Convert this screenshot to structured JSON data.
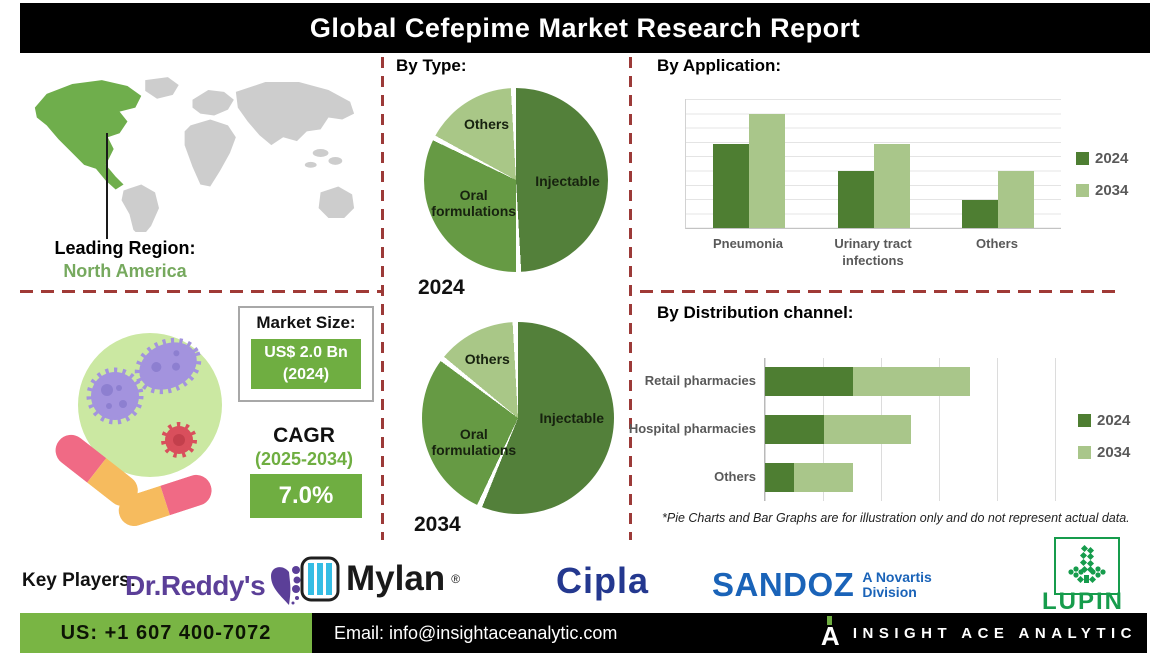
{
  "title": "Global Cefepime Market Research Report",
  "leading_region": {
    "label": "Leading Region:",
    "value": "North America"
  },
  "market": {
    "size_label": "Market Size:",
    "size_value": "US$ 2.0 Bn",
    "size_year": "(2024)",
    "cagr_label": "CAGR",
    "cagr_period": "(2025-2034)",
    "cagr_value": "7.0%"
  },
  "sections": {
    "by_type": "By Type:",
    "by_application": "By Application:",
    "by_distribution": "By Distribution channel:"
  },
  "disclaimer": "*Pie Charts and Bar Graphs are for illustration only and do not represent actual data.",
  "key_players": {
    "label": "Key Players:",
    "drreddys": "Dr.Reddy's",
    "mylan": "Mylan",
    "mylan_reg": "®",
    "cipla": "Cipla",
    "sandoz": "SANDOZ",
    "sandoz_sub1": "A Novartis",
    "sandoz_sub2": "Division",
    "lupin": "LUPIN"
  },
  "footer": {
    "phone": "US: +1 607 400-7072",
    "email": "Email: info@insightaceanalytic.com",
    "brand": "INSIGHT ACE ANALYTIC"
  },
  "colors": {
    "accent_green": "#6fae41",
    "footer_green": "#79b544",
    "dark_series": "#4e7e32",
    "light_series": "#a9c68a",
    "dashed_red": "#9c3a38",
    "map_green": "#6fae4c",
    "map_gray": "#cdcdcd"
  },
  "chart_data": [
    {
      "type": "pie",
      "title": "2024",
      "labels": [
        "Injectable",
        "Oral formulations",
        "Others"
      ],
      "values": [
        50,
        33,
        17
      ],
      "colors": [
        "#53803a",
        "#669a44",
        "#a9c787"
      ]
    },
    {
      "type": "pie",
      "title": "2034",
      "labels": [
        "Injectable",
        "Oral formulations",
        "Others"
      ],
      "values": [
        57,
        29,
        14
      ],
      "colors": [
        "#53803a",
        "#669a44",
        "#a9c787"
      ]
    },
    {
      "type": "bar",
      "title": "By Application:",
      "categories": [
        "Pneumonia",
        "Urinary tract infections",
        "Others"
      ],
      "series": [
        {
          "name": "2024",
          "values": [
            65,
            44,
            22
          ]
        },
        {
          "name": "2034",
          "values": [
            88,
            65,
            44
          ]
        }
      ],
      "colors": [
        "#4e7e32",
        "#a9c68a"
      ],
      "ylim": [
        0,
        100
      ],
      "grid": true,
      "legend": "right"
    },
    {
      "type": "bar-horizontal-stacked",
      "title": "By Distribution channel:",
      "categories": [
        "Retail pharmacies",
        "Hospital pharmacies",
        "Others"
      ],
      "series": [
        {
          "name": "2024",
          "values": [
            15,
            10,
            5
          ]
        },
        {
          "name": "2034",
          "values": [
            20,
            15,
            10
          ]
        }
      ],
      "colors": [
        "#4e7e32",
        "#a9c68a"
      ],
      "xlim": [
        0,
        55
      ],
      "grid": true,
      "legend": "right"
    }
  ]
}
